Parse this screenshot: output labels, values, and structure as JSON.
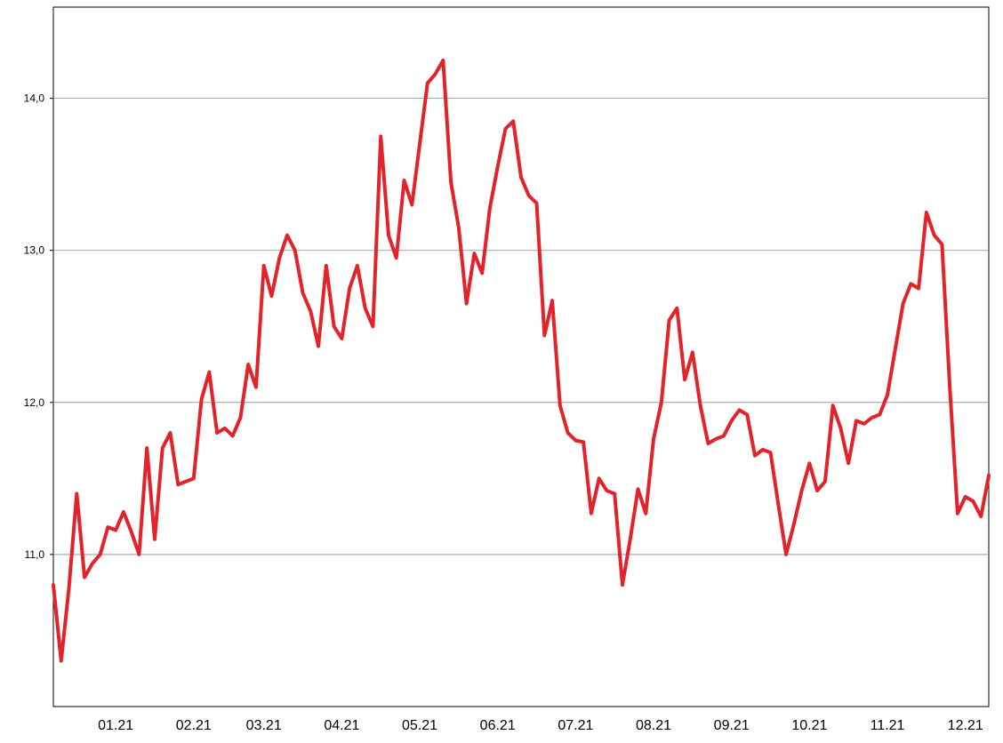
{
  "chart_data": {
    "type": "line",
    "color": "#e3222a",
    "grid": true,
    "ylim": [
      10.0,
      14.6
    ],
    "yticks": [
      {
        "value": 11,
        "label": "11,0"
      },
      {
        "value": 12,
        "label": "12,0"
      },
      {
        "value": 13,
        "label": "13,0"
      },
      {
        "value": 14,
        "label": "14,0"
      }
    ],
    "categories": [
      null,
      null,
      null,
      null,
      null,
      null,
      null,
      null,
      "01.21",
      null,
      null,
      null,
      null,
      null,
      null,
      null,
      null,
      null,
      "02.21",
      null,
      null,
      null,
      null,
      null,
      null,
      null,
      null,
      "03.21",
      null,
      null,
      null,
      null,
      null,
      null,
      null,
      null,
      null,
      "04.21",
      null,
      null,
      null,
      null,
      null,
      null,
      null,
      null,
      null,
      "05.21",
      null,
      null,
      null,
      null,
      null,
      null,
      null,
      null,
      null,
      "06.21",
      null,
      null,
      null,
      null,
      null,
      null,
      null,
      null,
      null,
      "07.21",
      null,
      null,
      null,
      null,
      null,
      null,
      null,
      null,
      null,
      "08.21",
      null,
      null,
      null,
      null,
      null,
      null,
      null,
      null,
      null,
      "09.21",
      null,
      null,
      null,
      null,
      null,
      null,
      null,
      null,
      null,
      "10.21",
      null,
      null,
      null,
      null,
      null,
      null,
      null,
      null,
      null,
      "11.21",
      null,
      null,
      null,
      null,
      null,
      null,
      null,
      null,
      null,
      "12.21",
      null,
      null,
      null
    ],
    "values": [
      10.8,
      10.3,
      10.78,
      11.4,
      10.85,
      10.94,
      11.0,
      11.18,
      11.16,
      11.28,
      11.15,
      11.0,
      11.7,
      11.1,
      11.7,
      11.8,
      11.46,
      11.48,
      11.5,
      12.02,
      12.2,
      11.8,
      11.83,
      11.78,
      11.9,
      12.25,
      12.1,
      12.9,
      12.7,
      12.95,
      13.1,
      13.0,
      12.72,
      12.6,
      12.37,
      12.9,
      12.5,
      12.42,
      12.75,
      12.9,
      12.62,
      12.5,
      13.75,
      13.1,
      12.95,
      13.46,
      13.3,
      13.7,
      14.1,
      14.16,
      14.25,
      13.45,
      13.15,
      12.65,
      12.98,
      12.85,
      13.28,
      13.55,
      13.8,
      13.85,
      13.48,
      13.36,
      13.31,
      12.44,
      12.67,
      11.98,
      11.8,
      11.75,
      11.74,
      11.27,
      11.5,
      11.42,
      11.4,
      10.8,
      11.1,
      11.43,
      11.27,
      11.76,
      12.0,
      12.54,
      12.62,
      12.15,
      12.33,
      11.98,
      11.73,
      11.76,
      11.78,
      11.88,
      11.95,
      11.92,
      11.65,
      11.69,
      11.67,
      11.33,
      11.0,
      11.2,
      11.42,
      11.6,
      11.42,
      11.48,
      11.98,
      11.83,
      11.6,
      11.88,
      11.86,
      11.9,
      11.92,
      12.05,
      12.35,
      12.65,
      12.78,
      12.75,
      13.25,
      13.1,
      13.04,
      12.1,
      11.27,
      11.38,
      11.35,
      11.25,
      11.52
    ]
  }
}
